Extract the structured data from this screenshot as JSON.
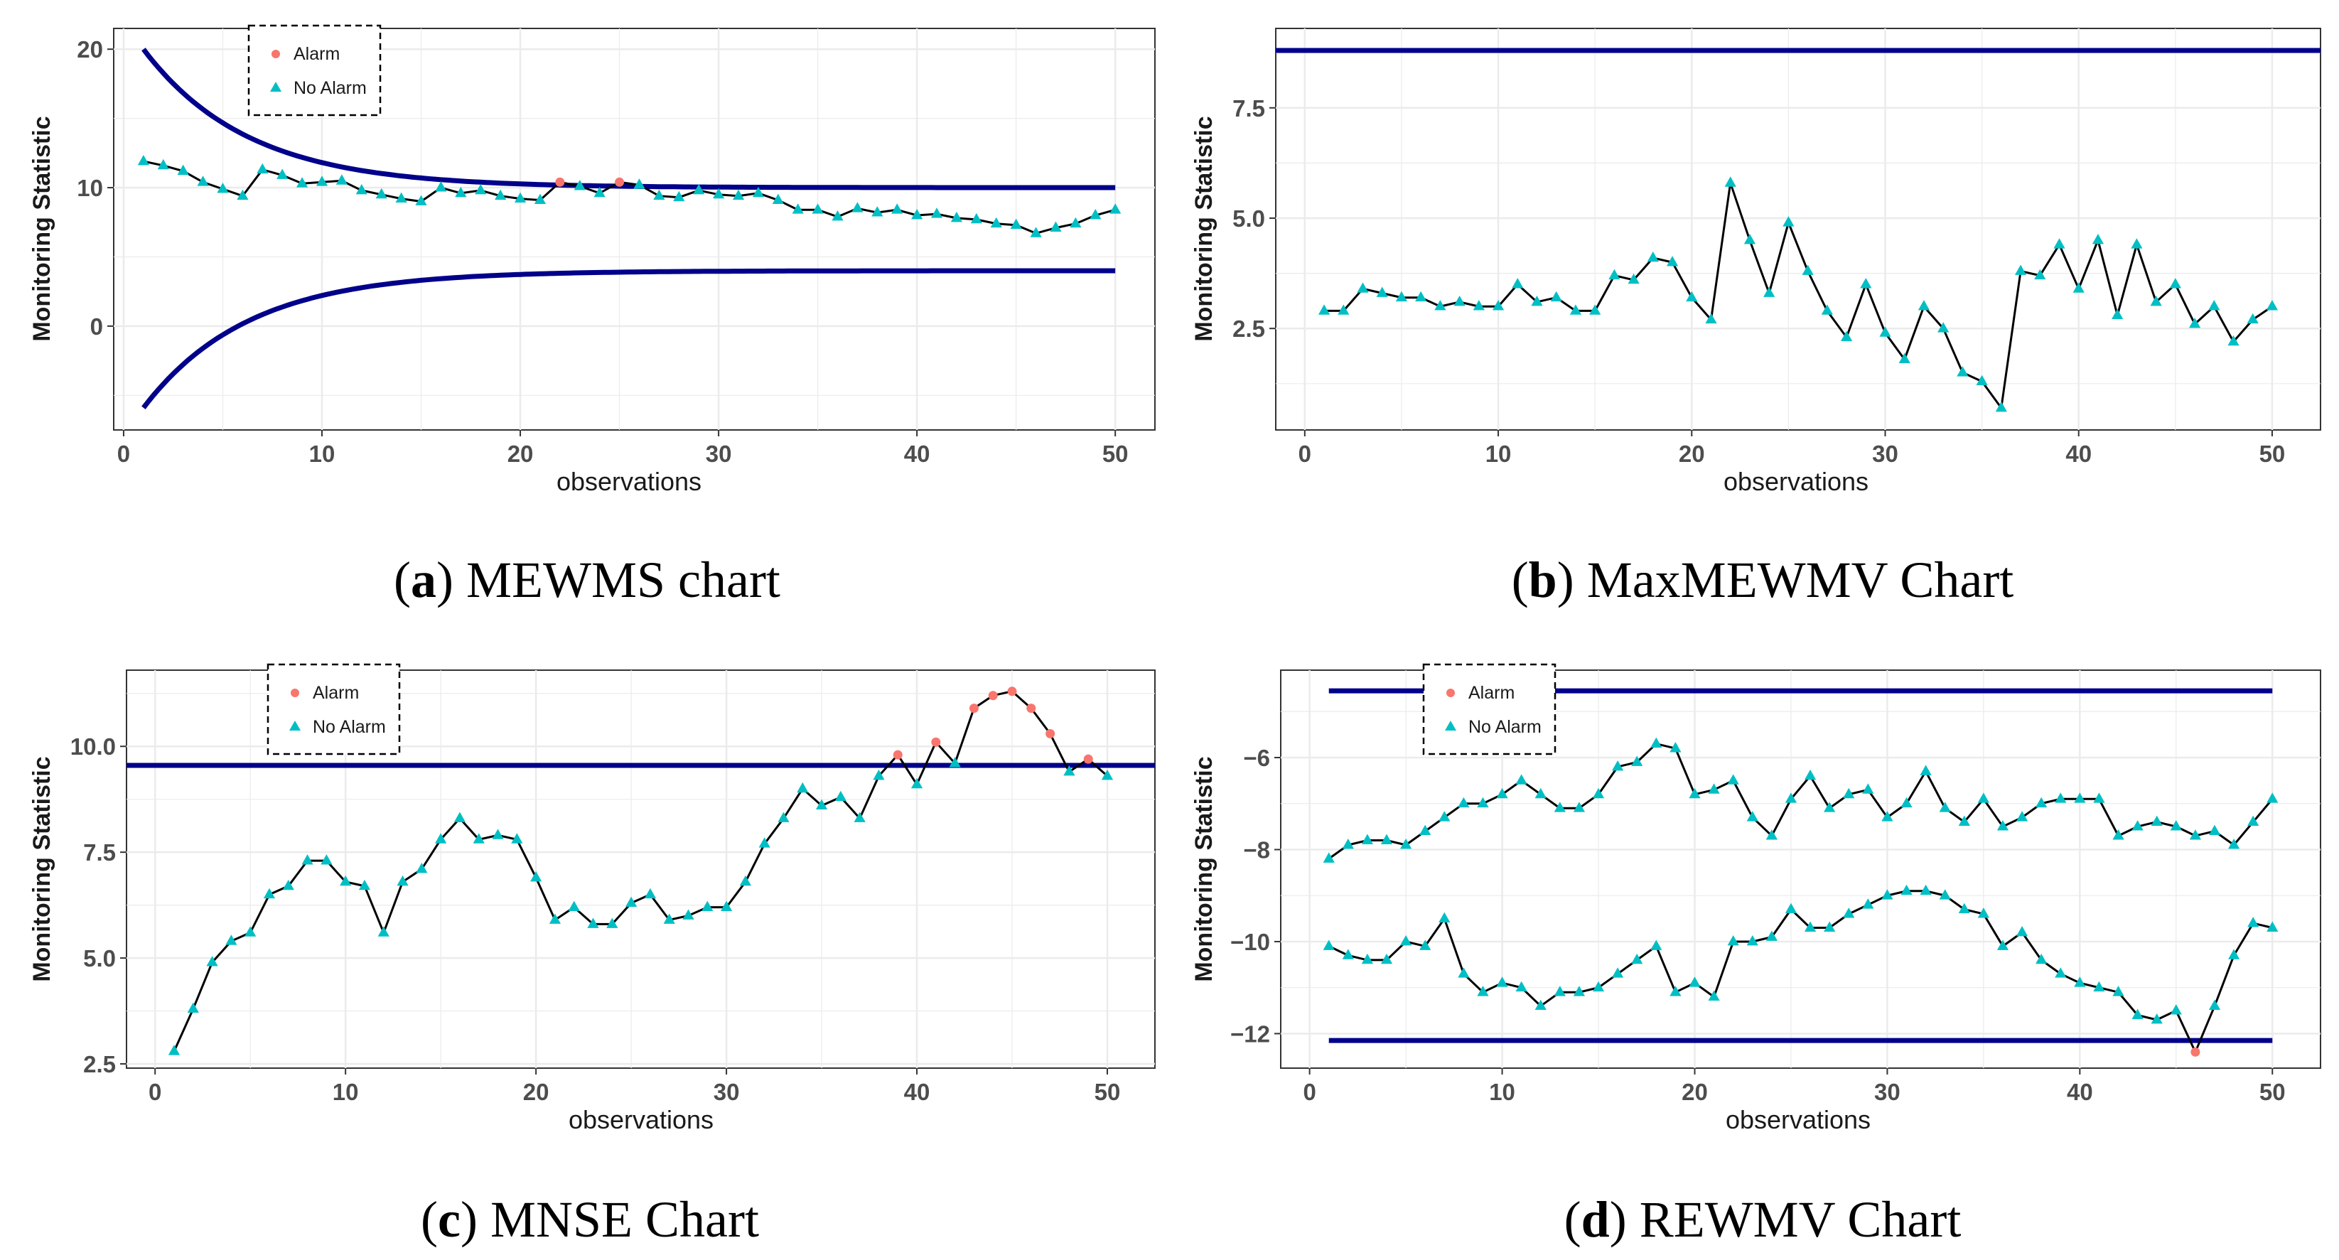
{
  "colors": {
    "limit": "#00008B",
    "alarm": "#F8766D",
    "no_alarm": "#00BFC4",
    "line": "#000000",
    "grid": "#EBEBEB",
    "panel_border": "#333333"
  },
  "chart_data": [
    {
      "id": "a",
      "type": "line",
      "caption_letter": "a",
      "caption_text": "MEWMS chart",
      "xlabel": "observations",
      "ylabel": "Monitoring Statistic",
      "xlim": [
        -0.5,
        52
      ],
      "ylim": [
        -7.5,
        21.5
      ],
      "xticks": [
        0,
        10,
        20,
        30,
        40,
        50
      ],
      "xtick_labels": [
        "0",
        "10",
        "20",
        "30",
        "40",
        "50"
      ],
      "yticks": [
        0,
        10,
        20
      ],
      "ytick_labels": [
        "0",
        "10",
        "20"
      ],
      "legend": {
        "placement": "top-left",
        "alarm_label": "Alarm",
        "no_alarm_label": "No Alarm"
      },
      "series_stat": [
        {
          "name": "statistic",
          "x": [
            1,
            2,
            3,
            4,
            5,
            6,
            7,
            8,
            9,
            10,
            11,
            12,
            13,
            14,
            15,
            16,
            17,
            18,
            19,
            20,
            21,
            22,
            23,
            24,
            25,
            26,
            27,
            28,
            29,
            30,
            31,
            32,
            33,
            34,
            35,
            36,
            37,
            38,
            39,
            40,
            41,
            42,
            43,
            44,
            45,
            46,
            47,
            48,
            49,
            50
          ],
          "values": [
            11.9,
            11.6,
            11.2,
            10.4,
            9.9,
            9.4,
            11.3,
            10.9,
            10.3,
            10.4,
            10.5,
            9.8,
            9.5,
            9.2,
            9.0,
            10.0,
            9.6,
            9.8,
            9.4,
            9.2,
            9.1,
            10.4,
            10.1,
            9.6,
            10.4,
            10.2,
            9.4,
            9.3,
            9.8,
            9.5,
            9.4,
            9.6,
            9.1,
            8.4,
            8.4,
            7.9,
            8.5,
            8.2,
            8.4,
            8.0,
            8.1,
            7.8,
            7.7,
            7.4,
            7.3,
            6.7,
            7.1,
            7.4,
            8.0,
            8.4
          ],
          "alarm": [
            22,
            25
          ]
        }
      ],
      "limits": [
        {
          "name": "upper limit",
          "kind": "curve_decay",
          "x_start": 1,
          "x_end": 50,
          "start": 20.0,
          "end": 10.0,
          "rate": 0.19
        },
        {
          "name": "lower limit",
          "kind": "curve_decay",
          "x_start": 1,
          "x_end": 50,
          "start": -5.9,
          "end": 4.0,
          "rate": 0.19
        }
      ]
    },
    {
      "id": "b",
      "type": "line",
      "caption_letter": "b",
      "caption_text": "MaxMEWMV Chart",
      "xlabel": "observations",
      "ylabel": "Monitoring Statistic",
      "xlim": [
        -1.5,
        52.5
      ],
      "ylim": [
        0.2,
        9.3
      ],
      "xticks": [
        0,
        10,
        20,
        30,
        40,
        50
      ],
      "xtick_labels": [
        "0",
        "10",
        "20",
        "30",
        "40",
        "50"
      ],
      "yticks": [
        2.5,
        5.0,
        7.5
      ],
      "ytick_labels": [
        "2.5",
        "5.0",
        "7.5"
      ],
      "legend": null,
      "series_stat": [
        {
          "name": "statistic",
          "x": [
            1,
            2,
            3,
            4,
            5,
            6,
            7,
            8,
            9,
            10,
            11,
            12,
            13,
            14,
            15,
            16,
            17,
            18,
            19,
            20,
            21,
            22,
            23,
            24,
            25,
            26,
            27,
            28,
            29,
            30,
            31,
            32,
            33,
            34,
            35,
            36,
            37,
            38,
            39,
            40,
            41,
            42,
            43,
            44,
            45,
            46,
            47,
            48,
            49,
            50
          ],
          "values": [
            2.9,
            2.9,
            3.4,
            3.3,
            3.2,
            3.2,
            3.0,
            3.1,
            3.0,
            3.0,
            3.5,
            3.1,
            3.2,
            2.9,
            2.9,
            3.7,
            3.6,
            4.1,
            4.0,
            3.2,
            2.7,
            5.8,
            4.5,
            3.3,
            4.9,
            3.8,
            2.9,
            2.3,
            3.5,
            2.4,
            1.8,
            3.0,
            2.5,
            1.5,
            1.3,
            0.7,
            3.8,
            3.7,
            4.4,
            3.4,
            4.5,
            2.8,
            4.4,
            3.1,
            3.5,
            2.6,
            3.0,
            2.2,
            2.7,
            3.0
          ],
          "alarm": []
        }
      ],
      "limits": [
        {
          "name": "upper limit",
          "kind": "hline",
          "x_start": -1.5,
          "x_end": 52.5,
          "value": 8.8
        }
      ]
    },
    {
      "id": "c",
      "type": "line",
      "caption_letter": "c",
      "caption_text": "MNSE Chart",
      "xlabel": "observations",
      "ylabel": "Monitoring Statistic",
      "xlim": [
        -1.5,
        52.5
      ],
      "ylim": [
        2.4,
        11.8
      ],
      "xticks": [
        0,
        10,
        20,
        30,
        40,
        50
      ],
      "xtick_labels": [
        "0",
        "10",
        "20",
        "30",
        "40",
        "50"
      ],
      "yticks": [
        2.5,
        5.0,
        7.5,
        10.0
      ],
      "ytick_labels": [
        "2.5",
        "5.0",
        "7.5",
        "10.0"
      ],
      "legend": {
        "placement": "top-left",
        "alarm_label": "Alarm",
        "no_alarm_label": "No Alarm"
      },
      "series_stat": [
        {
          "name": "statistic",
          "x": [
            1,
            2,
            3,
            4,
            5,
            6,
            7,
            8,
            9,
            10,
            11,
            12,
            13,
            14,
            15,
            16,
            17,
            18,
            19,
            20,
            21,
            22,
            23,
            24,
            25,
            26,
            27,
            28,
            29,
            30,
            31,
            32,
            33,
            34,
            35,
            36,
            37,
            38,
            39,
            40,
            41,
            42,
            43,
            44,
            45,
            46,
            47,
            48,
            49,
            50
          ],
          "values": [
            2.8,
            3.8,
            4.9,
            5.4,
            5.6,
            6.5,
            6.7,
            7.3,
            7.3,
            6.8,
            6.7,
            5.6,
            6.8,
            7.1,
            7.8,
            8.3,
            7.8,
            7.9,
            7.8,
            6.9,
            5.9,
            6.2,
            5.8,
            5.8,
            6.3,
            6.5,
            5.9,
            6.0,
            6.2,
            6.2,
            6.8,
            7.7,
            8.3,
            9.0,
            8.6,
            8.8,
            8.3,
            9.3,
            9.8,
            9.1,
            10.1,
            9.6,
            10.9,
            11.2,
            11.3,
            10.9,
            10.3,
            9.4,
            9.7,
            9.3
          ],
          "alarm": [
            39,
            41,
            43,
            44,
            45,
            46,
            47,
            49
          ]
        }
      ],
      "limits": [
        {
          "name": "upper limit",
          "kind": "hline",
          "x_start": -1.5,
          "x_end": 52.5,
          "value": 9.55
        }
      ]
    },
    {
      "id": "d",
      "type": "line",
      "caption_letter": "d",
      "caption_text": "REWMV Chart",
      "xlabel": "observations",
      "ylabel": "Monitoring Statistic",
      "xlim": [
        -1.5,
        52.5
      ],
      "ylim": [
        -12.75,
        -4.1
      ],
      "xticks": [
        0,
        10,
        20,
        30,
        40,
        50
      ],
      "xtick_labels": [
        "0",
        "10",
        "20",
        "30",
        "40",
        "50"
      ],
      "yticks": [
        -12,
        -10,
        -8,
        -6
      ],
      "ytick_labels": [
        "−12",
        "−10",
        "−8",
        "−6"
      ],
      "legend": {
        "placement": "top-left",
        "alarm_label": "Alarm",
        "no_alarm_label": "No Alarm"
      },
      "series_stat": [
        {
          "name": "upper statistic",
          "x": [
            1,
            2,
            3,
            4,
            5,
            6,
            7,
            8,
            9,
            10,
            11,
            12,
            13,
            14,
            15,
            16,
            17,
            18,
            19,
            20,
            21,
            22,
            23,
            24,
            25,
            26,
            27,
            28,
            29,
            30,
            31,
            32,
            33,
            34,
            35,
            36,
            37,
            38,
            39,
            40,
            41,
            42,
            43,
            44,
            45,
            46,
            47,
            48,
            49,
            50
          ],
          "values": [
            -8.2,
            -7.9,
            -7.8,
            -7.8,
            -7.9,
            -7.6,
            -7.3,
            -7.0,
            -7.0,
            -6.8,
            -6.5,
            -6.8,
            -7.1,
            -7.1,
            -6.8,
            -6.2,
            -6.1,
            -5.7,
            -5.8,
            -6.8,
            -6.7,
            -6.5,
            -7.3,
            -7.7,
            -6.9,
            -6.4,
            -7.1,
            -6.8,
            -6.7,
            -7.3,
            -7.0,
            -6.3,
            -7.1,
            -7.4,
            -6.9,
            -7.5,
            -7.3,
            -7.0,
            -6.9,
            -6.9,
            -6.9,
            -7.7,
            -7.5,
            -7.4,
            -7.5,
            -7.7,
            -7.6,
            -7.9,
            -7.4,
            -6.9
          ],
          "alarm": []
        },
        {
          "name": "lower statistic",
          "x": [
            1,
            2,
            3,
            4,
            5,
            6,
            7,
            8,
            9,
            10,
            11,
            12,
            13,
            14,
            15,
            16,
            17,
            18,
            19,
            20,
            21,
            22,
            23,
            24,
            25,
            26,
            27,
            28,
            29,
            30,
            31,
            32,
            33,
            34,
            35,
            36,
            37,
            38,
            39,
            40,
            41,
            42,
            43,
            44,
            45,
            46,
            47,
            48,
            49,
            50
          ],
          "values": [
            -10.1,
            -10.3,
            -10.4,
            -10.4,
            -10.0,
            -10.1,
            -9.5,
            -10.7,
            -11.1,
            -10.9,
            -11.0,
            -11.4,
            -11.1,
            -11.1,
            -11.0,
            -10.7,
            -10.4,
            -10.1,
            -11.1,
            -10.9,
            -11.2,
            -10.0,
            -10.0,
            -9.9,
            -9.3,
            -9.7,
            -9.7,
            -9.4,
            -9.2,
            -9.0,
            -8.9,
            -8.9,
            -9.0,
            -9.3,
            -9.4,
            -10.1,
            -9.8,
            -10.4,
            -10.7,
            -10.9,
            -11.0,
            -11.1,
            -11.6,
            -11.7,
            -11.5,
            -12.4,
            -11.4,
            -10.3,
            -9.6,
            -9.7
          ],
          "alarm": [
            46
          ]
        }
      ],
      "limits": [
        {
          "name": "upper limit",
          "kind": "hline",
          "x_start": 1,
          "x_end": 50,
          "value": -4.55
        },
        {
          "name": "lower limit",
          "kind": "hline",
          "x_start": 1,
          "x_end": 50,
          "value": -12.15
        }
      ]
    }
  ]
}
